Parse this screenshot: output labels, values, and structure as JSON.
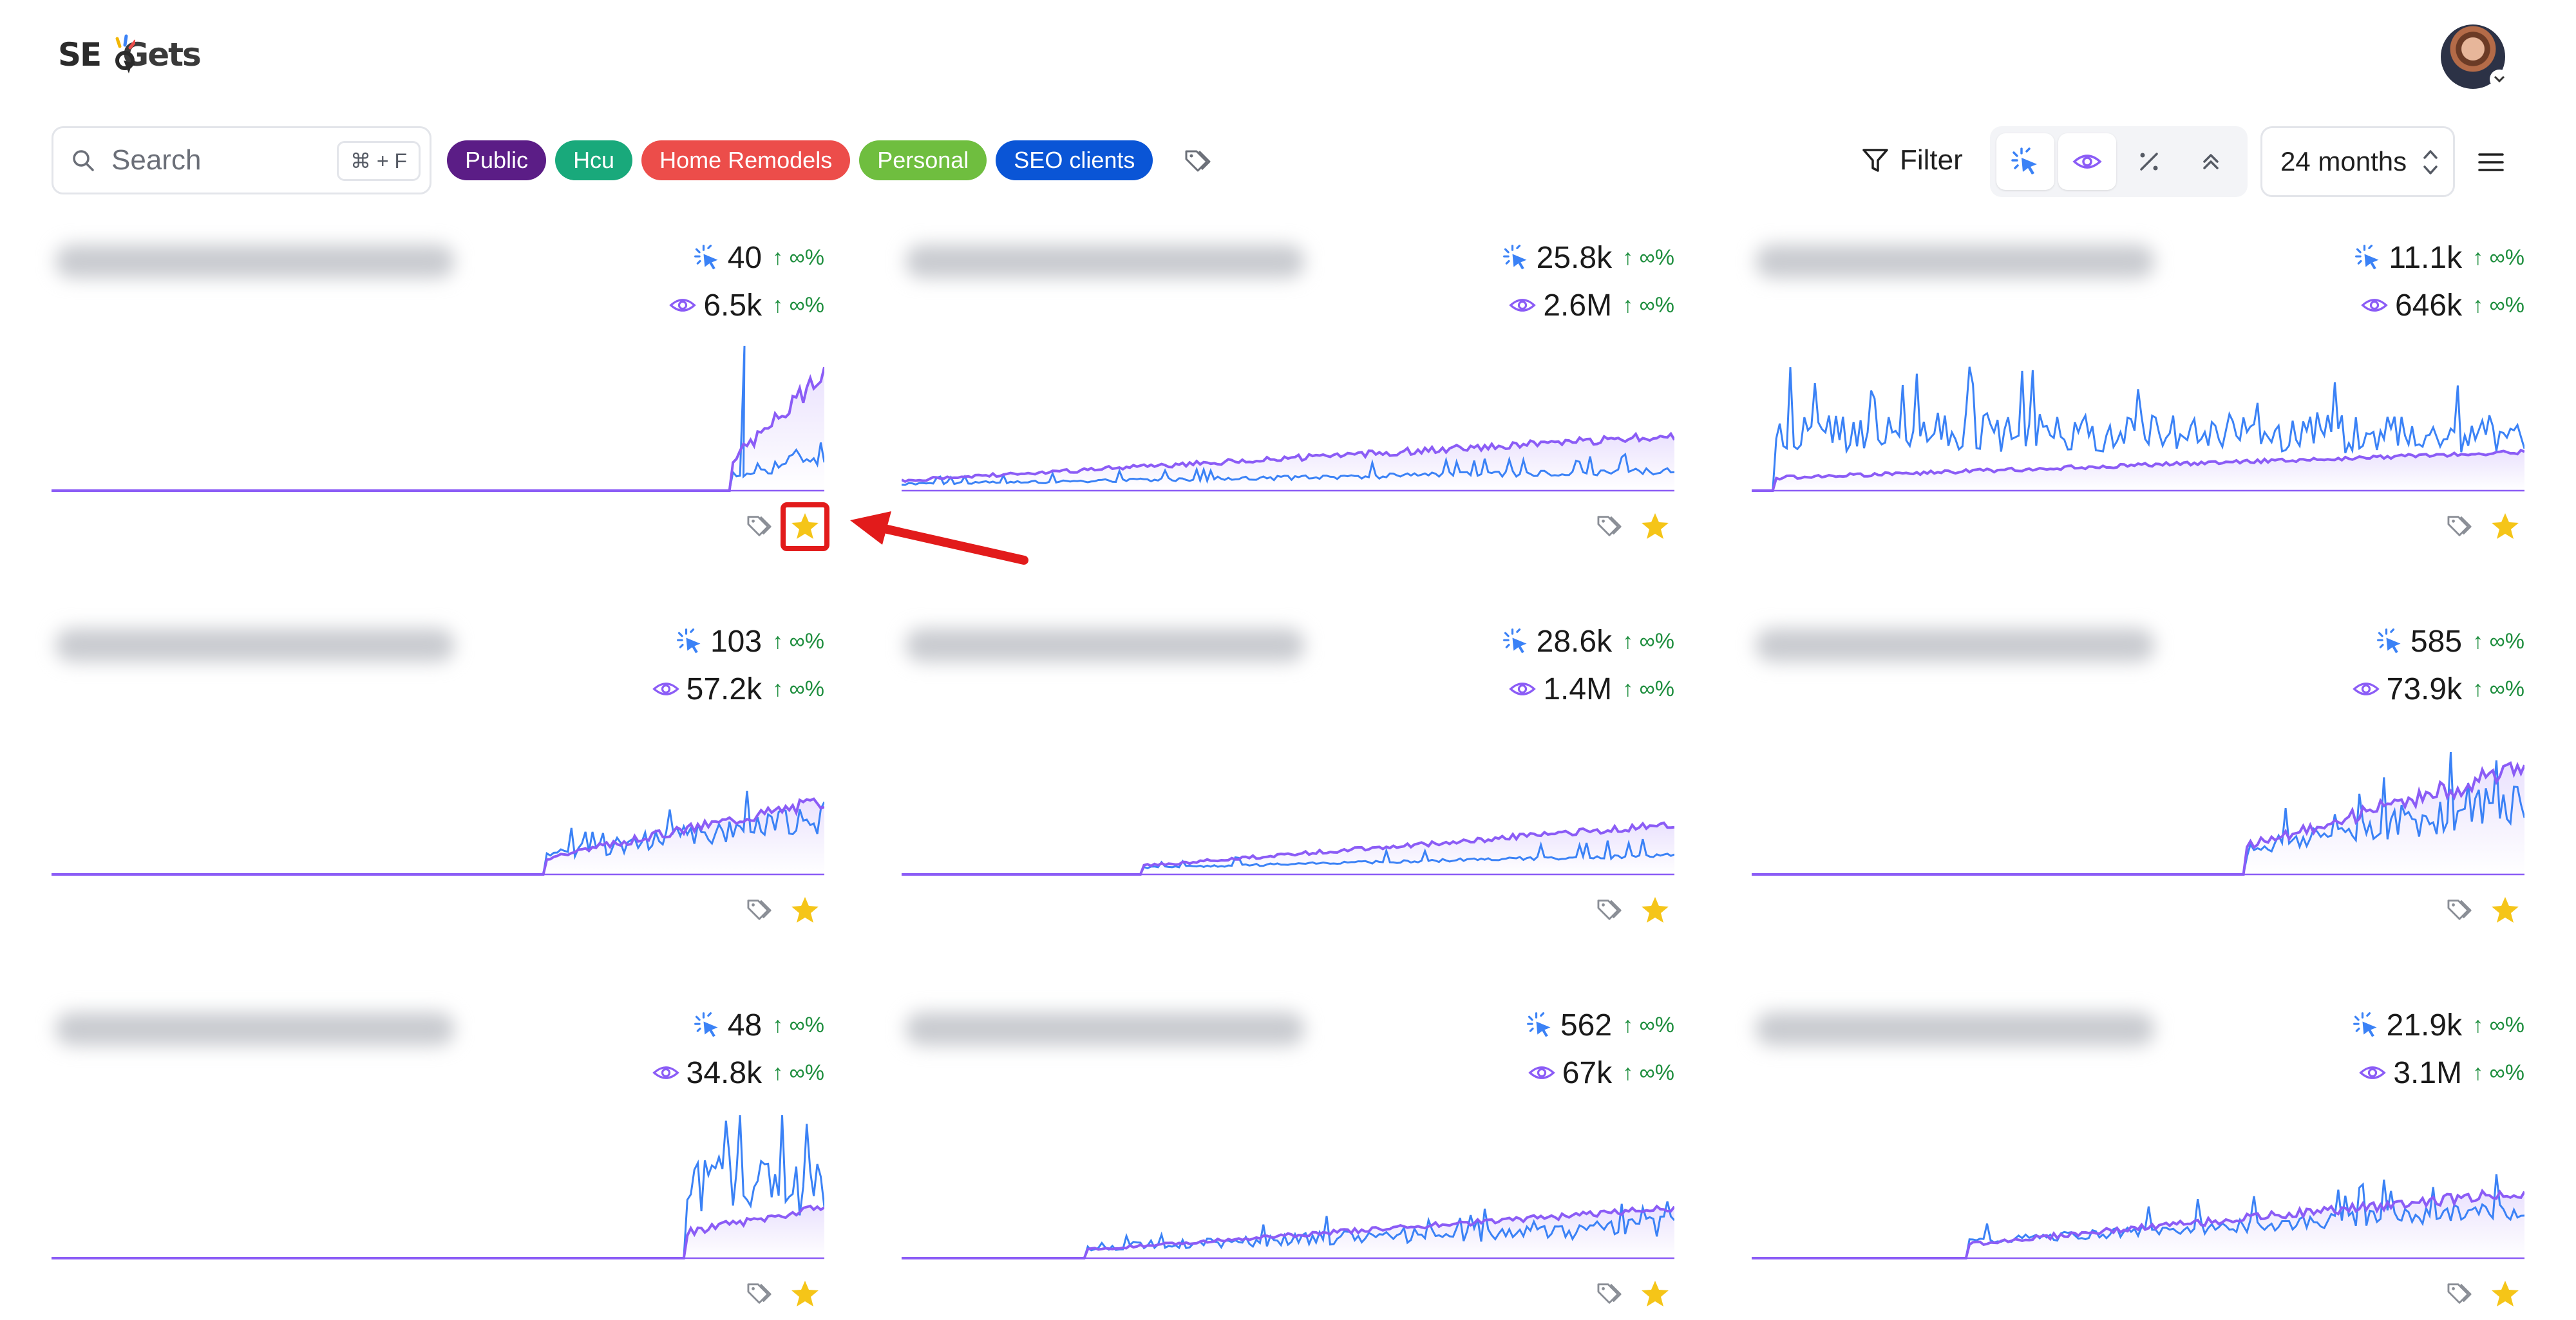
{
  "header": {
    "logo_part1": "SE",
    "logo_part2": "Gets",
    "user_avatar": "avatar"
  },
  "toolbar": {
    "search_placeholder": "Search",
    "search_shortcut": "⌘ + F",
    "tags": [
      {
        "label": "Public",
        "color": "#5b1d86"
      },
      {
        "label": "Hcu",
        "color": "#19a97b"
      },
      {
        "label": "Home Remodels",
        "color": "#ec4d4a"
      },
      {
        "label": "Personal",
        "color": "#6fbe3f"
      },
      {
        "label": "SEO clients",
        "color": "#0a55d6"
      }
    ],
    "filter_label": "Filter",
    "metric_toggles": [
      "clicks-icon",
      "eye-icon",
      "percent-icon",
      "position-icon"
    ],
    "period_label": "24 months"
  },
  "colors": {
    "clicks": "#3b82f6",
    "impressions": "#8b5cf6",
    "positive_change": "#1e8e3e",
    "star": "#f5c518",
    "highlight": "#e21b1b"
  },
  "cards": [
    {
      "clicks": "40",
      "clicks_change": "↑ ∞%",
      "impressions": "6.5k",
      "impressions_change": "↑ ∞%",
      "starred": true,
      "chart": {
        "start": 0.88,
        "clicksLevel": 0.25,
        "imprLevel": 0.55,
        "trend": "up",
        "noise": 0.35,
        "spike": 0.9
      }
    },
    {
      "clicks": "25.8k",
      "clicks_change": "↑ ∞%",
      "impressions": "2.6M",
      "impressions_change": "↑ ∞%",
      "starred": true,
      "chart": {
        "start": 0.0,
        "clicksLevel": 0.12,
        "imprLevel": 0.18,
        "trend": "up",
        "noise": 0.18
      }
    },
    {
      "clicks": "11.1k",
      "clicks_change": "↑ ∞%",
      "impressions": "646k",
      "impressions_change": "↑ ∞%",
      "starred": true,
      "chart": {
        "start": 0.03,
        "clicksLevel": 0.45,
        "imprLevel": 0.1,
        "trend": "flat",
        "noise": 0.35
      }
    },
    {
      "clicks": "103",
      "clicks_change": "↑ ∞%",
      "impressions": "57.2k",
      "impressions_change": "↑ ∞%",
      "starred": true,
      "chart": {
        "start": 0.64,
        "clicksLevel": 0.35,
        "imprLevel": 0.3,
        "trend": "up",
        "noise": 0.3
      }
    },
    {
      "clicks": "28.6k",
      "clicks_change": "↑ ∞%",
      "impressions": "1.4M",
      "impressions_change": "↑ ∞%",
      "starred": true,
      "chart": {
        "start": 0.31,
        "clicksLevel": 0.12,
        "imprLevel": 0.15,
        "trend": "up",
        "noise": 0.12
      }
    },
    {
      "clicks": "585",
      "clicks_change": "↑ ∞%",
      "impressions": "73.9k",
      "impressions_change": "↑ ∞%",
      "starred": true,
      "chart": {
        "start": 0.64,
        "clicksLevel": 0.45,
        "imprLevel": 0.5,
        "trend": "up",
        "noise": 0.35
      }
    },
    {
      "clicks": "48",
      "clicks_change": "↑ ∞%",
      "impressions": "34.8k",
      "impressions_change": "↑ ∞%",
      "starred": true,
      "chart": {
        "start": 0.82,
        "clicksLevel": 0.55,
        "imprLevel": 0.2,
        "trend": "flat",
        "noise": 0.45
      }
    },
    {
      "clicks": "562",
      "clicks_change": "↑ ∞%",
      "impressions": "67k",
      "impressions_change": "↑ ∞%",
      "starred": true,
      "chart": {
        "start": 0.24,
        "clicksLevel": 0.2,
        "imprLevel": 0.15,
        "trend": "up",
        "noise": 0.35
      }
    },
    {
      "clicks": "21.9k",
      "clicks_change": "↑ ∞%",
      "impressions": "3.1M",
      "impressions_change": "↑ ∞%",
      "starred": true,
      "chart": {
        "start": 0.28,
        "clicksLevel": 0.3,
        "imprLevel": 0.25,
        "trend": "up",
        "noise": 0.2
      }
    }
  ]
}
